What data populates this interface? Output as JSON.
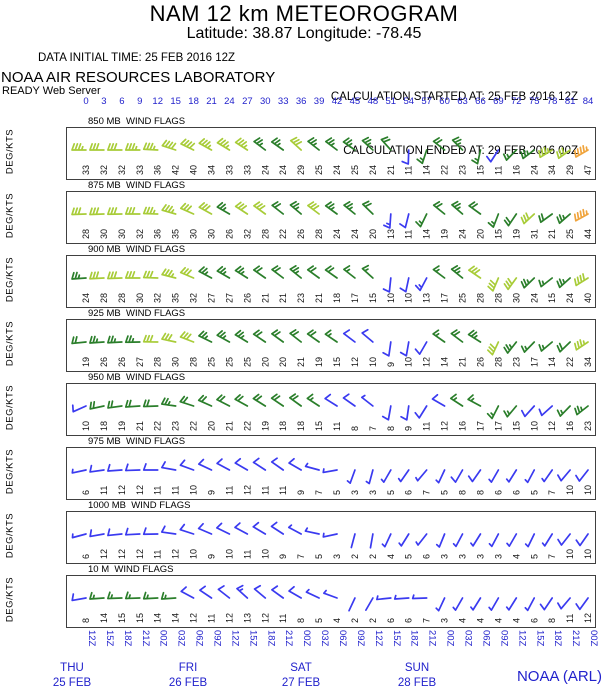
{
  "header": {
    "title": "NAM 12 km METEOROGRAM",
    "subtitle": "Latitude: 38.87 Longitude: -78.45",
    "data_initial_time": "DATA INITIAL TIME: 25 FEB 2016 12Z",
    "calculation_started": "CALCULATION STARTED AT: 25 FEB 2016 12Z",
    "calculation_ended": "CALCULATION ENDED AT: 29 FEB 2016 00Z",
    "organization": "NOAA AIR RESOURCES LABORATORY",
    "server": "READY Web Server"
  },
  "footer": {
    "credit": "NOAA (ARL)"
  },
  "colors": {
    "text_blue": "#2222cc",
    "barb_blue": "#3a3af0",
    "barb_green": "#2a7e2a",
    "barb_yellow_green": "#a8cc38",
    "barb_orange": "#f0a43c",
    "box_border": "#404040",
    "value_text": "#111111"
  },
  "chart_data": {
    "type": "meteogram-wind-barbs",
    "title": "NAM 12 km METEOROGRAM",
    "y_axis_label": "DEG/KTS",
    "units": "knots",
    "forecast_hours": [
      0,
      3,
      6,
      9,
      12,
      15,
      18,
      21,
      24,
      27,
      30,
      33,
      36,
      39,
      42,
      45,
      48,
      51,
      54,
      57,
      60,
      63,
      66,
      69,
      72,
      75,
      78,
      81,
      84
    ],
    "time_ticks": [
      "12Z",
      "15Z",
      "18Z",
      "21Z",
      "00Z",
      "03Z",
      "06Z",
      "09Z",
      "12Z",
      "15Z",
      "18Z",
      "21Z",
      "00Z",
      "03Z",
      "06Z",
      "09Z",
      "12Z",
      "15Z",
      "18Z",
      "21Z",
      "00Z",
      "03Z",
      "06Z",
      "09Z",
      "12Z",
      "15Z",
      "18Z",
      "21Z",
      "00Z"
    ],
    "days": [
      {
        "name": "THU",
        "date": "25 FEB"
      },
      {
        "name": "FRI",
        "date": "26 FEB"
      },
      {
        "name": "SAT",
        "date": "27 FEB"
      },
      {
        "name": "SUN",
        "date": "28 FEB"
      }
    ],
    "color_thresholds_kts": {
      "green_min": 14,
      "yellow_green_min": 28,
      "orange_min": 44
    },
    "panels": [
      {
        "id": "850mb",
        "label": "850 MB  WIND FLAGS",
        "speeds_kts": [
          33,
          32,
          32,
          33,
          36,
          42,
          40,
          34,
          33,
          33,
          24,
          24,
          29,
          25,
          24,
          25,
          24,
          21,
          11,
          14,
          22,
          23,
          15,
          11,
          16,
          24,
          34,
          29,
          47
        ],
        "directions_deg": [
          270,
          270,
          270,
          270,
          273,
          288,
          296,
          299,
          301,
          303,
          307,
          305,
          312,
          308,
          307,
          305,
          312,
          318,
          182,
          198,
          308,
          315,
          192,
          213,
          224,
          233,
          239,
          234,
          240
        ]
      },
      {
        "id": "875mb",
        "label": "875 MB  WIND FLAGS",
        "speeds_kts": [
          28,
          30,
          30,
          32,
          36,
          35,
          30,
          30,
          26,
          32,
          28,
          22,
          26,
          28,
          24,
          24,
          20,
          13,
          11,
          14,
          19,
          24,
          20,
          15,
          19,
          31,
          21,
          25,
          44
        ],
        "directions_deg": [
          268,
          268,
          269,
          270,
          272,
          286,
          294,
          299,
          300,
          303,
          306,
          308,
          310,
          307,
          306,
          309,
          314,
          184,
          194,
          206,
          309,
          311,
          306,
          201,
          214,
          227,
          234,
          229,
          241
        ]
      },
      {
        "id": "900mb",
        "label": "900 MB  WIND FLAGS",
        "speeds_kts": [
          24,
          28,
          28,
          30,
          32,
          35,
          32,
          27,
          27,
          26,
          21,
          21,
          23,
          21,
          18,
          17,
          15,
          10,
          10,
          13,
          17,
          25,
          28,
          28,
          30,
          24,
          15,
          24,
          40
        ],
        "directions_deg": [
          266,
          267,
          268,
          270,
          272,
          284,
          293,
          298,
          300,
          302,
          305,
          307,
          309,
          306,
          305,
          308,
          312,
          186,
          192,
          208,
          307,
          309,
          304,
          203,
          216,
          226,
          232,
          228,
          238
        ]
      },
      {
        "id": "925mb",
        "label": "925 MB  WIND FLAGS",
        "speeds_kts": [
          19,
          26,
          26,
          27,
          28,
          30,
          28,
          25,
          25,
          25,
          20,
          20,
          21,
          19,
          15,
          12,
          10,
          9,
          10,
          12,
          14,
          21,
          26,
          28,
          23,
          17,
          14,
          22,
          34
        ],
        "directions_deg": [
          264,
          266,
          267,
          269,
          271,
          282,
          291,
          296,
          299,
          301,
          304,
          306,
          308,
          305,
          304,
          307,
          310,
          188,
          190,
          210,
          305,
          307,
          302,
          205,
          218,
          224,
          230,
          226,
          236
        ]
      },
      {
        "id": "950mb",
        "label": "950 MB  WIND FLAGS",
        "speeds_kts": [
          10,
          18,
          19,
          21,
          22,
          23,
          22,
          20,
          21,
          22,
          19,
          18,
          18,
          15,
          11,
          8,
          7,
          8,
          9,
          11,
          12,
          16,
          17,
          17,
          15,
          10,
          12,
          16,
          23
        ],
        "directions_deg": [
          246,
          258,
          262,
          266,
          268,
          278,
          288,
          294,
          297,
          299,
          302,
          304,
          306,
          303,
          302,
          305,
          308,
          190,
          188,
          212,
          300,
          303,
          298,
          207,
          220,
          222,
          228,
          224,
          232
        ]
      },
      {
        "id": "975mb",
        "label": "975 MB  WIND FLAGS",
        "speeds_kts": [
          6,
          11,
          12,
          12,
          11,
          11,
          10,
          9,
          11,
          12,
          11,
          11,
          9,
          7,
          5,
          3,
          3,
          5,
          6,
          7,
          5,
          8,
          8,
          6,
          6,
          5,
          7,
          10,
          10
        ],
        "directions_deg": [
          258,
          262,
          266,
          268,
          270,
          280,
          290,
          295,
          298,
          300,
          303,
          305,
          300,
          285,
          260,
          200,
          195,
          210,
          215,
          220,
          205,
          210,
          215,
          210,
          212,
          208,
          215,
          220,
          218
        ]
      },
      {
        "id": "1000mb",
        "label": "1000 MB  WIND FLAGS",
        "speeds_kts": [
          6,
          12,
          12,
          12,
          11,
          12,
          10,
          9,
          10,
          11,
          10,
          9,
          7,
          5,
          3,
          2,
          2,
          4,
          5,
          6,
          3,
          3,
          3,
          3,
          4,
          5,
          7,
          10,
          10
        ],
        "directions_deg": [
          255,
          260,
          264,
          267,
          269,
          278,
          288,
          293,
          296,
          298,
          301,
          303,
          298,
          282,
          258,
          195,
          190,
          205,
          212,
          218,
          202,
          208,
          212,
          208,
          210,
          206,
          212,
          218,
          215
        ]
      },
      {
        "id": "10m",
        "label": "10 M  WIND FLAGS",
        "speeds_kts": [
          8,
          14,
          15,
          15,
          14,
          14,
          12,
          11,
          12,
          13,
          12,
          11,
          8,
          5,
          4,
          2,
          2,
          6,
          6,
          7,
          3,
          4,
          4,
          4,
          4,
          6,
          8,
          11,
          12
        ],
        "directions_deg": [
          260,
          266,
          268,
          268,
          267,
          266,
          298,
          304,
          308,
          312,
          310,
          306,
          300,
          295,
          290,
          205,
          210,
          264,
          266,
          268,
          205,
          210,
          212,
          210,
          212,
          208,
          214,
          220,
          216
        ]
      }
    ]
  }
}
